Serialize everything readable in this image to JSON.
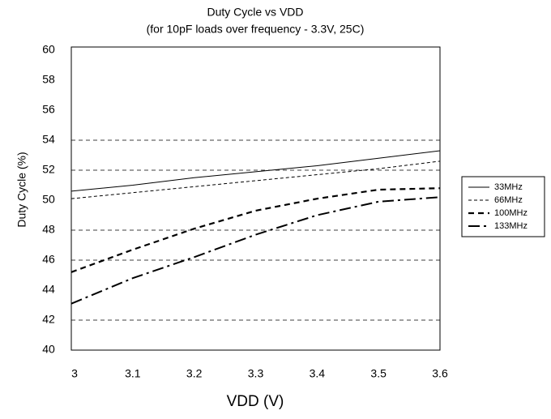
{
  "chart_data": {
    "type": "line",
    "title": "Duty Cycle vs VDD",
    "subtitle": "(for 10pF loads over frequency - 3.3V, 25C)",
    "x_label": "VDD (V)",
    "y_label": "Duty Cycle (%)",
    "x": [
      3.0,
      3.1,
      3.2,
      3.3,
      3.4,
      3.5,
      3.6
    ],
    "series": [
      {
        "name": "33MHz",
        "color": "#000000",
        "dash": "solid",
        "width": 1,
        "values": [
          50.6,
          51.0,
          51.5,
          51.9,
          52.3,
          52.8,
          53.3
        ]
      },
      {
        "name": "66MHz",
        "color": "#000000",
        "dash": "dashed",
        "width": 1,
        "values": [
          50.1,
          50.5,
          50.9,
          51.3,
          51.7,
          52.1,
          52.6
        ]
      },
      {
        "name": "100MHz",
        "color": "#000000",
        "dash": "bold-dashed",
        "width": 2.2,
        "values": [
          45.2,
          46.7,
          48.1,
          49.3,
          50.1,
          50.7,
          50.8
        ]
      },
      {
        "name": "133MHz",
        "color": "#000000",
        "dash": "dash-dot",
        "width": 2,
        "values": [
          43.1,
          44.8,
          46.2,
          47.7,
          49.0,
          49.9,
          50.2
        ]
      }
    ],
    "xlim": [
      3.0,
      3.6
    ],
    "xticks": [
      3,
      3.1,
      3.2,
      3.3,
      3.4,
      3.5,
      3.6
    ],
    "ylim": [
      40,
      60
    ],
    "yticks": [
      40,
      42,
      44,
      46,
      48,
      50,
      52,
      54,
      56,
      58,
      60
    ],
    "grid_lines": [
      54,
      52,
      48,
      46,
      42
    ],
    "legend": "right"
  }
}
